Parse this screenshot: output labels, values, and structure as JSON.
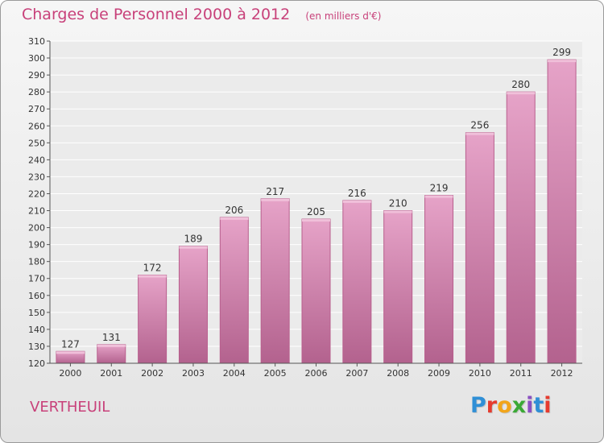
{
  "header": {
    "title": "Charges de Personnel 2000 à 2012",
    "subtitle": "(en milliers d'€)"
  },
  "commune": "VERTHEUIL",
  "brand": {
    "letters": [
      "P",
      "r",
      "o",
      "x",
      "i",
      "t",
      "i"
    ],
    "colors": [
      "#2f8fd6",
      "#e63b2e",
      "#f2a51a",
      "#3aa935",
      "#8a4fc2",
      "#2f8fd6",
      "#e63b2e"
    ]
  },
  "chart_data": {
    "type": "bar",
    "categories": [
      "2000",
      "2001",
      "2002",
      "2003",
      "2004",
      "2005",
      "2006",
      "2007",
      "2008",
      "2009",
      "2010",
      "2011",
      "2012"
    ],
    "values": [
      127,
      131,
      172,
      189,
      206,
      217,
      205,
      216,
      210,
      219,
      256,
      280,
      299
    ],
    "ylim": [
      120,
      310
    ],
    "yticks": [
      120,
      130,
      140,
      150,
      160,
      170,
      180,
      190,
      200,
      210,
      220,
      230,
      240,
      250,
      260,
      270,
      280,
      290,
      300,
      310
    ],
    "grid": true,
    "bar_color": "#d98cb5"
  }
}
